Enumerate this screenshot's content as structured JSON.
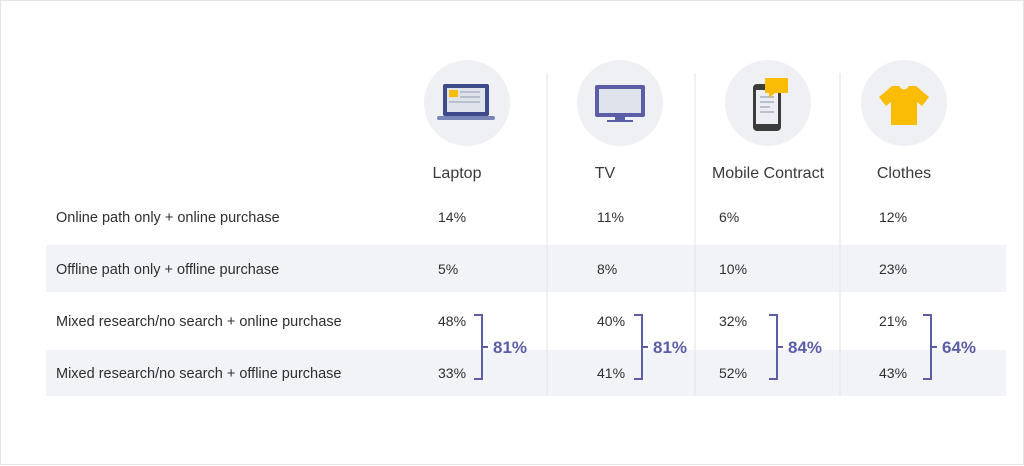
{
  "chart_data": {
    "type": "table",
    "columns": [
      {
        "label": "Laptop",
        "icon": "laptop-icon"
      },
      {
        "label": "TV",
        "icon": "tv-icon"
      },
      {
        "label": "Mobile Contract",
        "icon": "mobile-contract-icon"
      },
      {
        "label": "Clothes",
        "icon": "clothes-icon"
      }
    ],
    "rows": [
      {
        "label": "Online path only + online purchase",
        "values": [
          "14%",
          "11%",
          "6%",
          "12%"
        ]
      },
      {
        "label": "Offline path only + offline purchase",
        "values": [
          "5%",
          "8%",
          "10%",
          "23%"
        ]
      },
      {
        "label": "Mixed research/no search + online purchase",
        "values": [
          "48%",
          "40%",
          "32%",
          "21%"
        ]
      },
      {
        "label": "Mixed research/no search + offline purchase",
        "values": [
          "33%",
          "41%",
          "52%",
          "43%"
        ]
      }
    ],
    "mixed_totals": [
      "81%",
      "81%",
      "84%",
      "64%"
    ]
  },
  "colors": {
    "accent": "#5b5ea6",
    "icon_circle": "#eef0f4",
    "stripe": "#f1f3f7",
    "divider": "#e3e3e3",
    "yellow": "#fbbc05",
    "dark": "#3c3c3c"
  }
}
